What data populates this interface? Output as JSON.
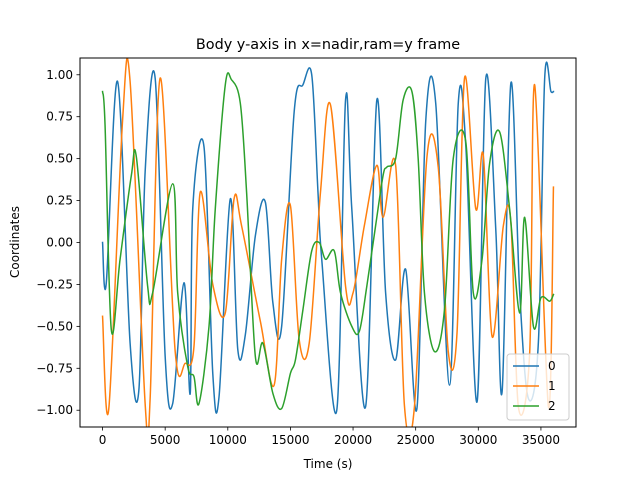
{
  "chart_data": {
    "type": "line",
    "title": "Body y-axis in x=nadir,ram=y frame",
    "xlabel": "Time (s)",
    "ylabel": "Coordinates",
    "xlim": [
      -1800,
      37800
    ],
    "ylim": [
      -1.1,
      1.1
    ],
    "xticks": [
      0,
      5000,
      10000,
      15000,
      20000,
      25000,
      30000,
      35000
    ],
    "xtick_labels": [
      "0",
      "5000",
      "10000",
      "15000",
      "20000",
      "25000",
      "30000",
      "35000"
    ],
    "yticks": [
      -1.0,
      -0.75,
      -0.5,
      -0.25,
      0.0,
      0.25,
      0.5,
      0.75,
      1.0
    ],
    "ytick_labels": [
      "−1.00",
      "−0.75",
      "−0.50",
      "−0.25",
      "0.00",
      "0.25",
      "0.50",
      "0.75",
      "1.00"
    ],
    "grid": false,
    "legend_position": "lower-right",
    "series": [
      {
        "name": "0",
        "color": "#1f77b4",
        "x": [
          0,
          300,
          1200,
          2200,
          2900,
          3400,
          4200,
          5000,
          5600,
          6500,
          7000,
          7200,
          8100,
          8800,
          9300,
          10200,
          10800,
          11400,
          12200,
          13000,
          13600,
          14300,
          15300,
          16000,
          16700,
          17200,
          17500,
          18700,
          19400,
          19900,
          21000,
          21900,
          22600,
          23400,
          24200,
          25100,
          25800,
          26600,
          27700,
          28400,
          29000,
          29900,
          30600,
          31400,
          31900,
          32600,
          33300,
          34000,
          34800,
          35300,
          35800,
          36000
        ],
        "y": [
          0.0,
          -0.24,
          0.96,
          -0.6,
          -0.88,
          0.42,
          0.98,
          -0.68,
          -0.96,
          -0.24,
          -0.9,
          0.2,
          0.57,
          -0.78,
          -0.92,
          0.26,
          -0.64,
          -0.55,
          0.04,
          0.24,
          -0.36,
          -0.5,
          0.78,
          0.94,
          1.0,
          0.3,
          -0.1,
          -1.0,
          0.85,
          0.2,
          -0.98,
          0.85,
          -0.3,
          -0.7,
          -0.16,
          -0.99,
          0.72,
          0.83,
          -0.85,
          0.83,
          0.58,
          -0.95,
          0.98,
          0.07,
          -0.89,
          0.95,
          -0.29,
          -0.93,
          -0.59,
          0.98,
          0.9,
          0.9
        ]
      },
      {
        "name": "1",
        "color": "#ff7f0e",
        "x": [
          0,
          500,
          1600,
          2200,
          3400,
          3800,
          4600,
          5800,
          6600,
          7300,
          7800,
          8800,
          9800,
          10500,
          11100,
          12600,
          13700,
          14300,
          15000,
          15700,
          16500,
          17400,
          18200,
          19400,
          20000,
          20900,
          21900,
          22400,
          23400,
          24100,
          24900,
          25900,
          26800,
          27600,
          28300,
          28900,
          29800,
          30400,
          31100,
          32000,
          32600,
          33200,
          34100,
          34500,
          35600,
          36000
        ],
        "y": [
          -0.44,
          -0.99,
          0.73,
          0.96,
          -0.96,
          -0.93,
          0.98,
          -0.65,
          -0.72,
          -0.62,
          0.3,
          -0.25,
          -0.42,
          0.26,
          0.1,
          -0.47,
          -0.85,
          -0.1,
          0.22,
          -0.58,
          -0.6,
          0.3,
          0.82,
          -0.26,
          -0.3,
          0.1,
          0.46,
          0.15,
          0.46,
          -0.97,
          -0.98,
          0.51,
          0.45,
          -0.65,
          -0.54,
          0.98,
          0.2,
          0.52,
          -0.56,
          0.1,
          0.12,
          -0.98,
          -0.66,
          0.94,
          -0.98,
          0.33
        ]
      },
      {
        "name": "2",
        "color": "#2ca02c",
        "x": [
          0,
          200,
          700,
          1400,
          2300,
          2700,
          3600,
          4000,
          5600,
          6000,
          6800,
          7300,
          7700,
          8500,
          9000,
          9800,
          10300,
          11000,
          11500,
          12200,
          12800,
          13600,
          14300,
          15000,
          15400,
          16000,
          16700,
          17300,
          17800,
          18500,
          19000,
          19900,
          20500,
          21100,
          21800,
          22400,
          22700,
          23400,
          24000,
          24700,
          25200,
          25700,
          26500,
          27300,
          28000,
          29000,
          29600,
          30300,
          30900,
          31700,
          32500,
          33300,
          33700,
          34400,
          35000,
          35700,
          36000
        ],
        "y": [
          0.9,
          0.7,
          -0.52,
          -0.1,
          0.4,
          0.51,
          -0.26,
          -0.3,
          0.35,
          -0.3,
          -0.74,
          -0.8,
          -0.96,
          -0.5,
          0.2,
          0.94,
          0.97,
          0.83,
          0.3,
          -0.68,
          -0.6,
          -0.9,
          -0.99,
          -0.78,
          -0.7,
          -0.4,
          -0.05,
          0.0,
          -0.1,
          -0.05,
          -0.3,
          -0.5,
          -0.53,
          -0.26,
          0.1,
          0.4,
          0.45,
          0.5,
          0.85,
          0.9,
          0.5,
          -0.3,
          -0.65,
          -0.4,
          0.5,
          0.6,
          -0.3,
          -0.1,
          0.47,
          0.66,
          0.2,
          -0.42,
          0.15,
          -0.5,
          -0.33,
          -0.35,
          -0.31
        ]
      }
    ]
  }
}
